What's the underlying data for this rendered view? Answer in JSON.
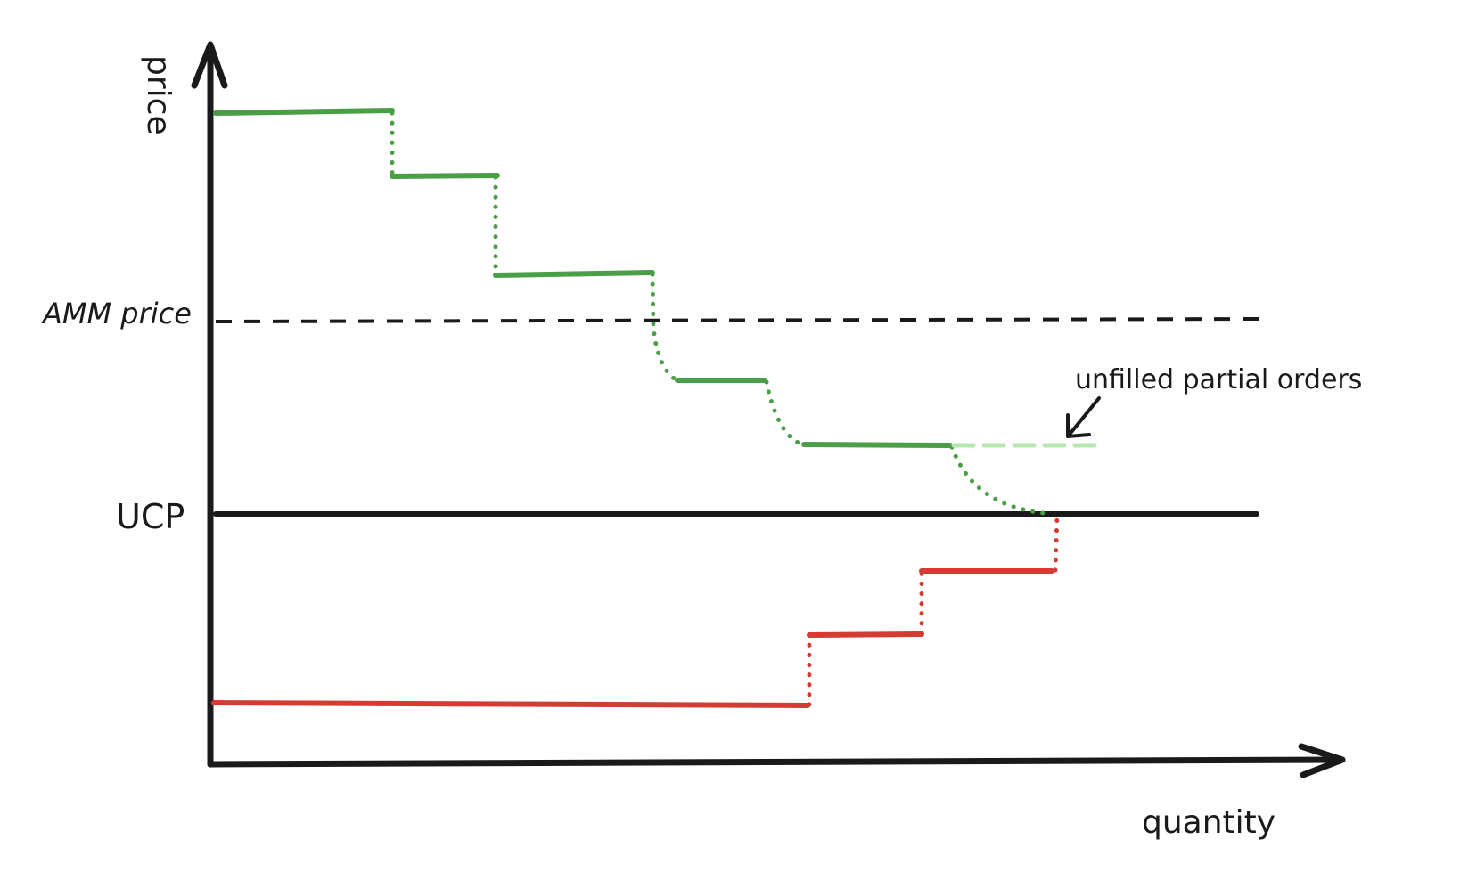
{
  "axes": {
    "y_label": "price",
    "x_label": "quantity"
  },
  "lines": {
    "amm_price_label": "AMM price",
    "ucp_label": "UCP"
  },
  "annotation": {
    "text": "unfilled partial orders"
  },
  "colors": {
    "ink": "#1a1a1a",
    "demand": "#4a9e46",
    "unfilled": "#b6e6b2",
    "supply": "#d23c33"
  }
}
